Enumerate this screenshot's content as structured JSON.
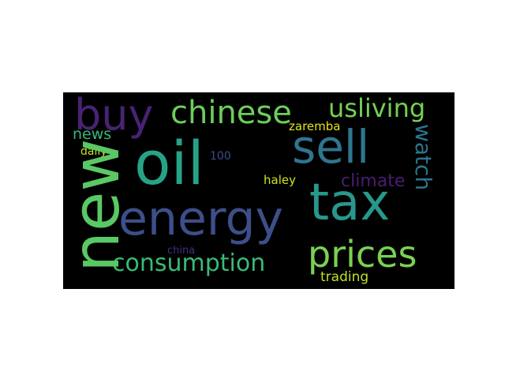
{
  "wordcloud": {
    "words": {
      "oil": {
        "text": "oil",
        "color": "#26a386"
      },
      "energy": {
        "text": "energy",
        "color": "#3d4f8a"
      },
      "tax": {
        "text": "tax",
        "color": "#27988b"
      },
      "sell": {
        "text": "sell",
        "color": "#2f758e"
      },
      "new": {
        "text": "new",
        "color": "#5ac864"
      },
      "buy": {
        "text": "buy",
        "color": "#482373"
      },
      "prices": {
        "text": "prices",
        "color": "#7ad151"
      },
      "chinese": {
        "text": "chinese",
        "color": "#6ccd5a"
      },
      "consumption": {
        "text": "consumption",
        "color": "#3aba76"
      },
      "usliving": {
        "text": "usliving",
        "color": "#74d055"
      },
      "watch": {
        "text": "watch",
        "color": "#2b748e"
      },
      "climate": {
        "text": "climate",
        "color": "#481e70"
      },
      "news": {
        "text": "news",
        "color": "#35b779"
      },
      "daily": {
        "text": "daily",
        "color": "#c9e020"
      },
      "100": {
        "text": "100",
        "color": "#3e4c8a"
      },
      "zaremba": {
        "text": "zaremba",
        "color": "#e2e418"
      },
      "haley": {
        "text": "haley",
        "color": "#d0e11c"
      },
      "china": {
        "text": "china",
        "color": "#472d7b"
      },
      "trading": {
        "text": "trading",
        "color": "#c2df23"
      }
    }
  }
}
